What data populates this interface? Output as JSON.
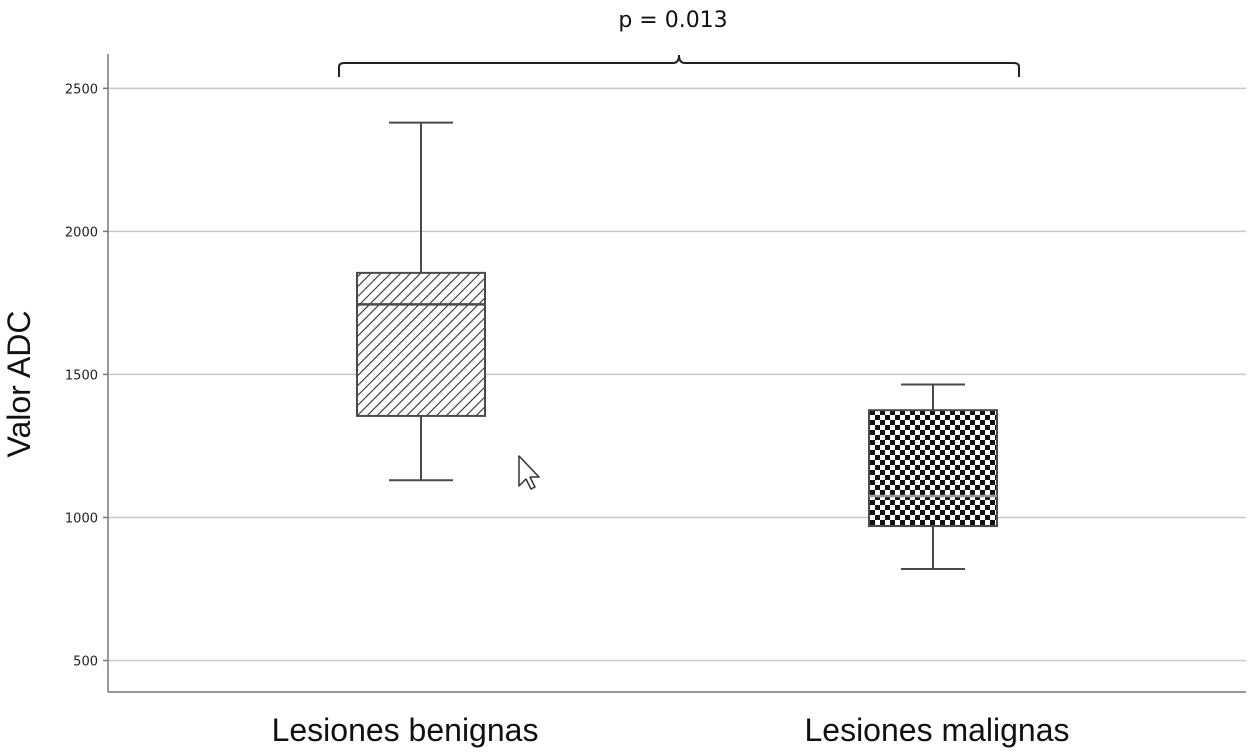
{
  "chart_data": {
    "type": "box",
    "title": "",
    "xlabel": "",
    "ylabel": "Valor ADC",
    "ylim": [
      390,
      2620
    ],
    "yticks": [
      500,
      1000,
      1500,
      2000,
      2500
    ],
    "grid": "horizontal",
    "categories": [
      "Lesiones benignas",
      "Lesiones malignas"
    ],
    "boxes": [
      {
        "category": "Lesiones benignas",
        "whisker_low": 1130,
        "q1": 1355,
        "median": 1745,
        "q3": 1855,
        "whisker_high": 2380,
        "pattern": "diagonal-hatch"
      },
      {
        "category": "Lesiones malignas",
        "whisker_low": 820,
        "q1": 970,
        "median": 1075,
        "q3": 1375,
        "whisker_high": 1465,
        "pattern": "checkerboard"
      }
    ],
    "annotation": {
      "text": "p = 0.013",
      "spans": [
        "Lesiones benignas",
        "Lesiones malignas"
      ]
    }
  },
  "colors": {
    "axis": "#777777",
    "grid": "#c8c8c8",
    "box_stroke": "#4a4a4a",
    "pattern_ink": "#222222"
  }
}
